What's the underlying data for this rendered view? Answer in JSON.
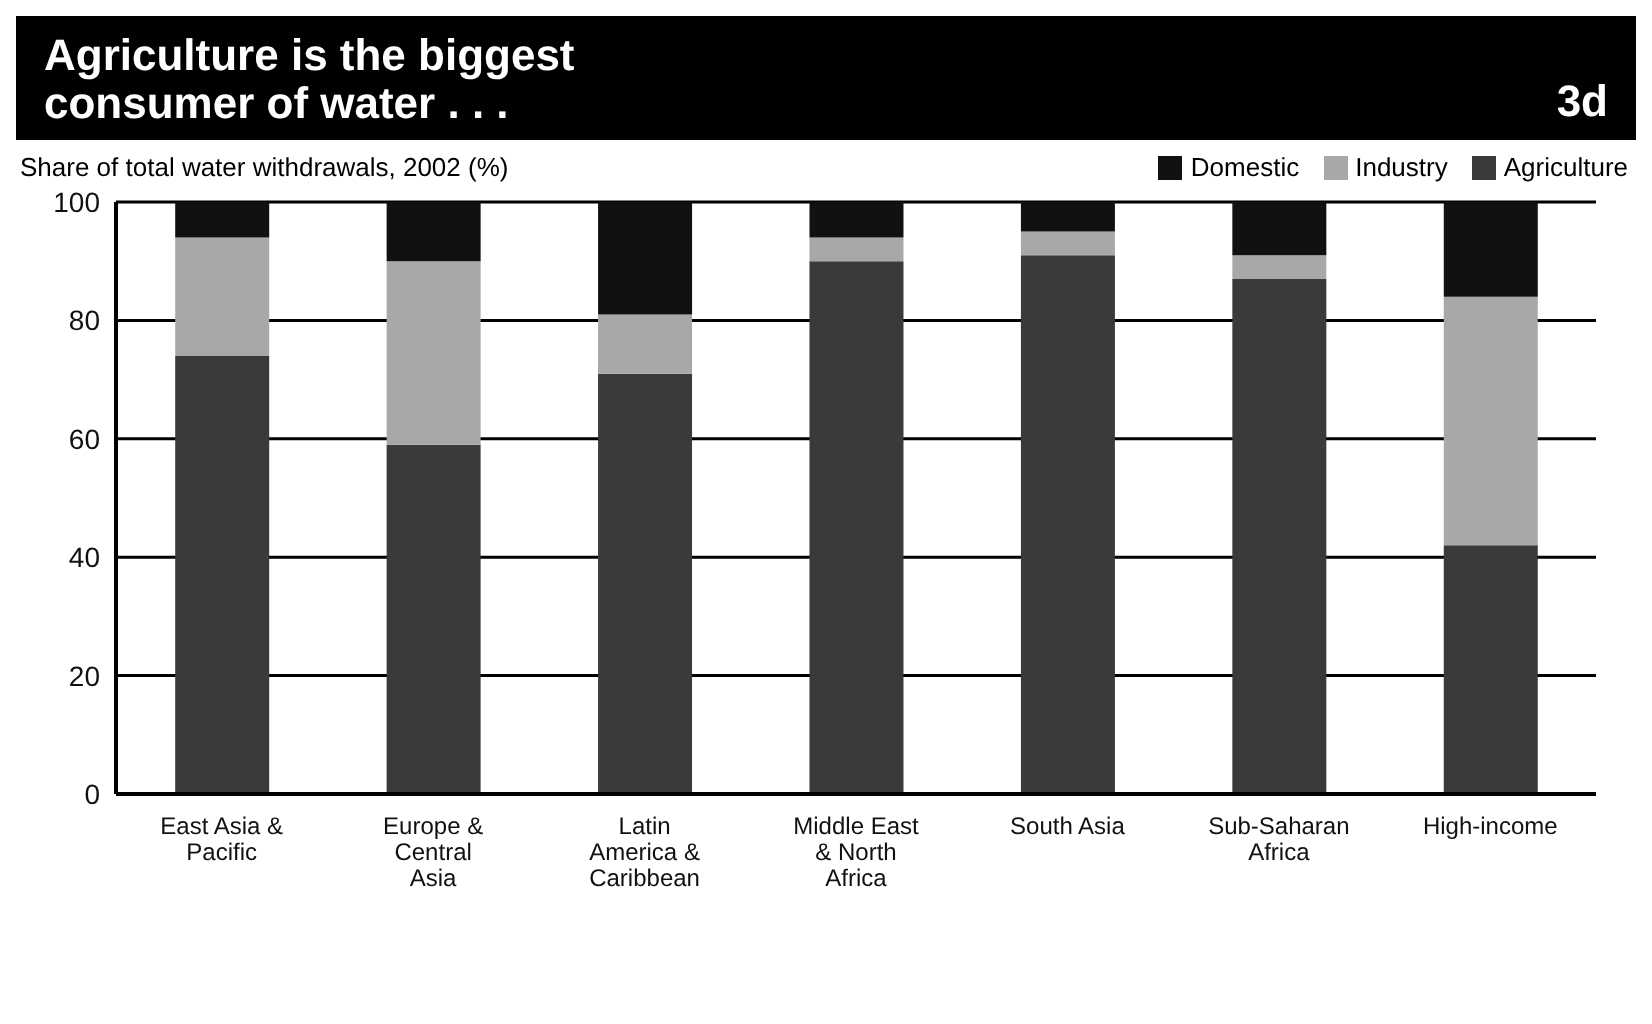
{
  "chart_data": {
    "type": "bar",
    "title": "Agriculture is the biggest consumer of water . . .",
    "subtitle": "Share of total water withdrawals, 2002 (%)",
    "annotations": [
      "3d"
    ],
    "categories": [
      "East Asia & Pacific",
      "Europe & Central Asia",
      "Latin America & Caribbean",
      "Middle East & North Africa",
      "South Asia",
      "Sub-Saharan Africa",
      "High-income"
    ],
    "stacked": true,
    "series": [
      {
        "name": "Agriculture",
        "color": "#3a3a3a",
        "values": [
          74,
          59,
          71,
          90,
          91,
          87,
          42
        ]
      },
      {
        "name": "Industry",
        "color": "#a8a8a8",
        "values": [
          20,
          31,
          10,
          4,
          4,
          4,
          42
        ]
      },
      {
        "name": "Domestic",
        "color": "#111111",
        "values": [
          6,
          10,
          19,
          6,
          5,
          9,
          16
        ]
      }
    ],
    "ylim": [
      0,
      100
    ],
    "yticks": [
      0,
      20,
      40,
      60,
      80,
      100
    ],
    "grid": "y",
    "legend": "top right"
  }
}
